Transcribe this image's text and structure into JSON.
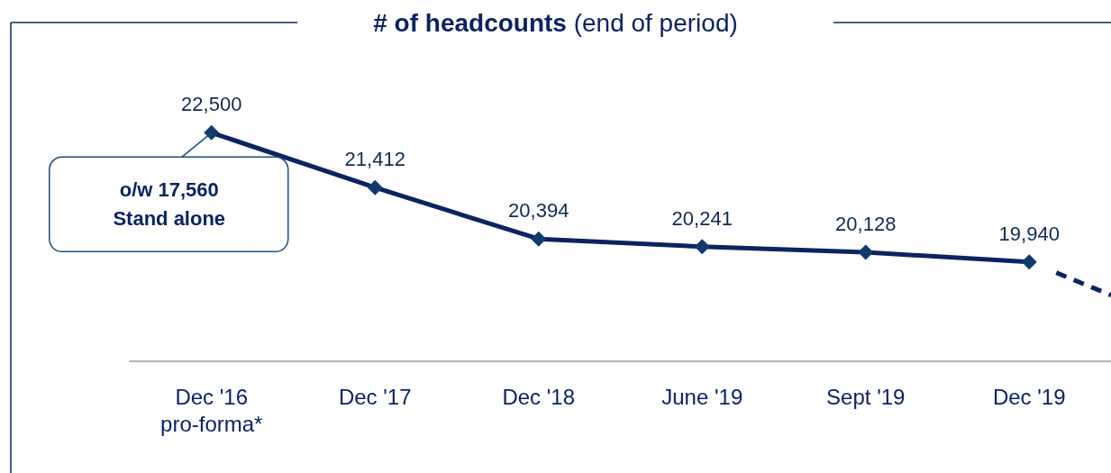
{
  "chart_data": {
    "type": "line",
    "title": "# of headcounts",
    "subtitle": "(end of period)",
    "categories": [
      "Dec '16\npro-forma*",
      "Dec '17",
      "Dec '18",
      "June '19",
      "Sept '19",
      "Dec '19"
    ],
    "series": [
      {
        "color": "#0b2460",
        "values": [
          22500,
          21412,
          20394,
          20241,
          20128,
          19940
        ],
        "value_labels": [
          "22,500",
          "21,412",
          "20,394",
          "20,241",
          "20,128",
          "19,940"
        ]
      }
    ],
    "marker": "diamond",
    "line_style": "solid",
    "tick_labels": "x",
    "annotations": [
      {
        "text": "o/w 17,560\nStand alone",
        "x": "Dec '16\npro-forma*",
        "y": 22500
      }
    ]
  }
}
